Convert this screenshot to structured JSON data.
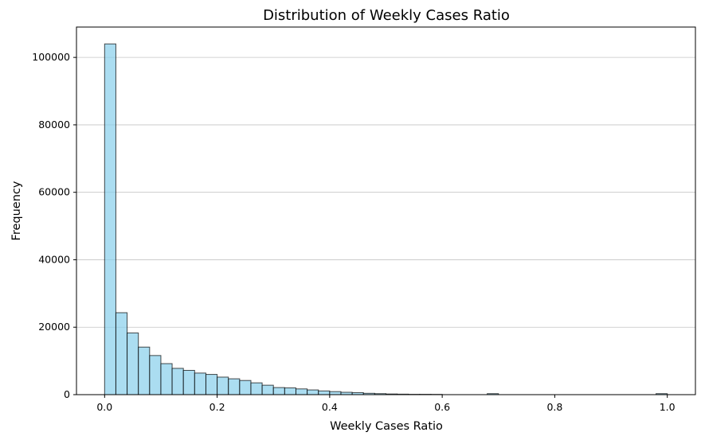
{
  "chart_data": {
    "type": "bar",
    "title": "Distribution of Weekly Cases Ratio",
    "xlabel": "Weekly Cases Ratio",
    "ylabel": "Frequency",
    "xlim": [
      -0.05,
      1.05
    ],
    "ylim": [
      0,
      109000
    ],
    "bins": 50,
    "bin_start": 0.0,
    "bin_width": 0.02,
    "grid_axis": "y",
    "x_ticks": [
      0.0,
      0.2,
      0.4,
      0.6,
      0.8,
      1.0
    ],
    "x_tick_labels": [
      "0.0",
      "0.2",
      "0.4",
      "0.6",
      "0.8",
      "1.0"
    ],
    "y_ticks": [
      0,
      20000,
      40000,
      60000,
      80000,
      100000
    ],
    "y_tick_labels": [
      "0",
      "20000",
      "40000",
      "60000",
      "80000",
      "100000"
    ],
    "bar_color": "#87ceeb",
    "edge_color": "#000000",
    "values": [
      104000,
      24300,
      18300,
      14100,
      11600,
      9200,
      7800,
      7200,
      6400,
      6000,
      5200,
      4700,
      4200,
      3500,
      2800,
      2100,
      2000,
      1700,
      1400,
      1100,
      900,
      700,
      600,
      400,
      300,
      200,
      150,
      100,
      100,
      80,
      0,
      0,
      0,
      0,
      300,
      0,
      0,
      0,
      0,
      0,
      0,
      0,
      0,
      0,
      0,
      0,
      0,
      0,
      0,
      300
    ]
  }
}
